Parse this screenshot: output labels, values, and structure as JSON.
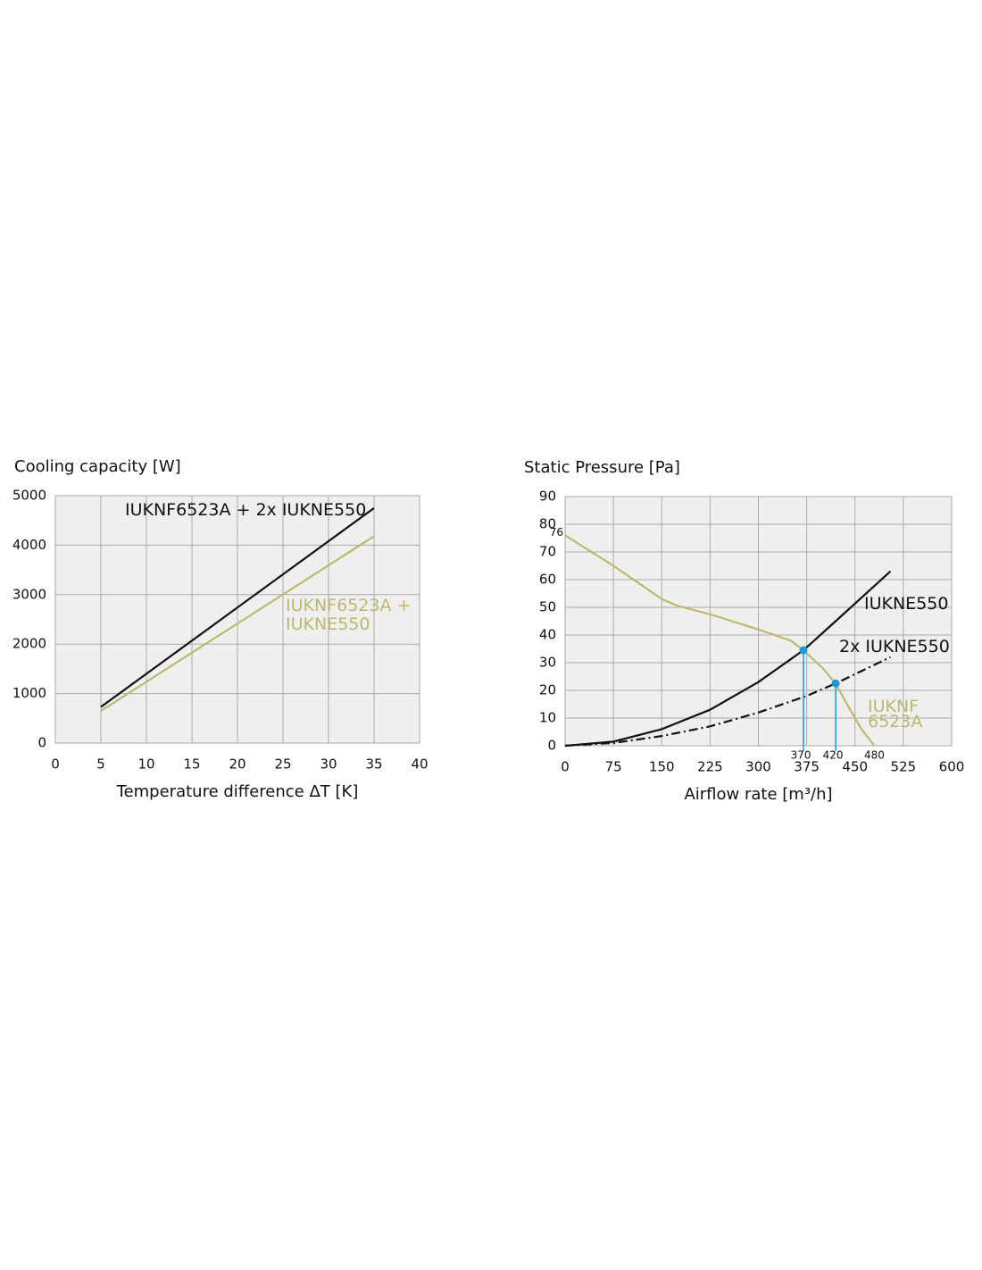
{
  "chart_data": [
    {
      "type": "line",
      "title": "Cooling capacity [W]",
      "x_label": "Temperature difference ΔT [K]",
      "xlim": [
        0,
        40
      ],
      "xticks": [
        0,
        5,
        10,
        15,
        20,
        25,
        30,
        35,
        40
      ],
      "ylim": [
        0,
        5000
      ],
      "yticks": [
        0,
        1000,
        2000,
        3000,
        4000,
        5000
      ],
      "grid": true,
      "x": [
        5,
        35
      ],
      "series": [
        {
          "name": "IUKNF6523A + 2x IUKNE550",
          "color": "#111111",
          "values": [
            730,
            4750
          ]
        },
        {
          "name": "IUKNF6523A + IUKNE550",
          "color": "#bdb86e",
          "values": [
            650,
            4180
          ]
        }
      ]
    },
    {
      "type": "line",
      "title": "Static Pressure [Pa]",
      "x_label": "Airflow rate [m³/h]",
      "xlim": [
        0,
        600
      ],
      "xticks": [
        0,
        75,
        150,
        225,
        300,
        375,
        450,
        525,
        600
      ],
      "ylim": [
        0,
        90
      ],
      "yticks": [
        0,
        10,
        20,
        30,
        40,
        50,
        60,
        70,
        80,
        90
      ],
      "grid": true,
      "series": [
        {
          "name": "IUKNE550",
          "color": "#111111",
          "dash": "solid",
          "x": [
            0,
            75,
            150,
            225,
            300,
            370,
            420,
            505
          ],
          "values": [
            0,
            1.5,
            6,
            13,
            23,
            34.5,
            45,
            63
          ]
        },
        {
          "name": "2x IUKNE550",
          "color": "#111111",
          "dash": "dash-dot",
          "x": [
            0,
            75,
            150,
            225,
            300,
            375,
            420,
            505
          ],
          "values": [
            0,
            1,
            3.5,
            7,
            12,
            18,
            22.5,
            32
          ]
        },
        {
          "name": "IUKNF 6523A",
          "color": "#bdb86e",
          "dash": "solid",
          "x": [
            0,
            75,
            150,
            175,
            225,
            300,
            350,
            370,
            400,
            420,
            440,
            460,
            480
          ],
          "values": [
            76,
            65,
            53,
            50.5,
            47.5,
            42,
            38,
            34.5,
            28,
            22.5,
            14,
            6,
            0
          ]
        }
      ],
      "points": {
        "color": "#1a9ad6",
        "x": [
          370,
          420
        ],
        "values": [
          34.5,
          22.5
        ]
      },
      "y_annotations": [
        76
      ],
      "x_annotations": [
        480
      ]
    }
  ]
}
